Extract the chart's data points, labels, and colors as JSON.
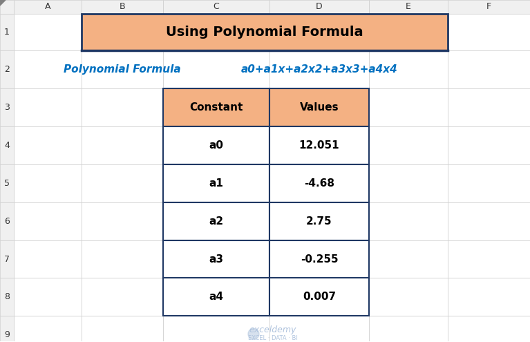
{
  "title": "Using Polynomial Formula",
  "title_bg": "#F4B183",
  "title_border": "#1F3864",
  "subtitle_label": "Polynomial Formula",
  "subtitle_formula": "a0+a1x+a2x2+a3x3+a4x4",
  "header_bg": "#F4B183",
  "header_border": "#1F3864",
  "col_headers": [
    "Constant",
    "Values"
  ],
  "rows": [
    [
      "a0",
      "12.051"
    ],
    [
      "a1",
      "-4.68"
    ],
    [
      "a2",
      "2.75"
    ],
    [
      "a3",
      "-0.255"
    ],
    [
      "a4",
      "0.007"
    ]
  ],
  "grid_color": "#1F3864",
  "cell_bg": "#FFFFFF",
  "col_labels": [
    "A",
    "B",
    "C",
    "D",
    "E",
    "F"
  ],
  "row_labels": [
    "1",
    "2",
    "3",
    "4",
    "5",
    "6",
    "7",
    "8",
    "9"
  ],
  "spreadsheet_bg": "#FFFFFF",
  "header_row_bg": "#F0F0F0",
  "header_col_bg": "#F0F0F0",
  "row_line_color": "#CCCCCC",
  "watermark_color": "#B0C4DE"
}
